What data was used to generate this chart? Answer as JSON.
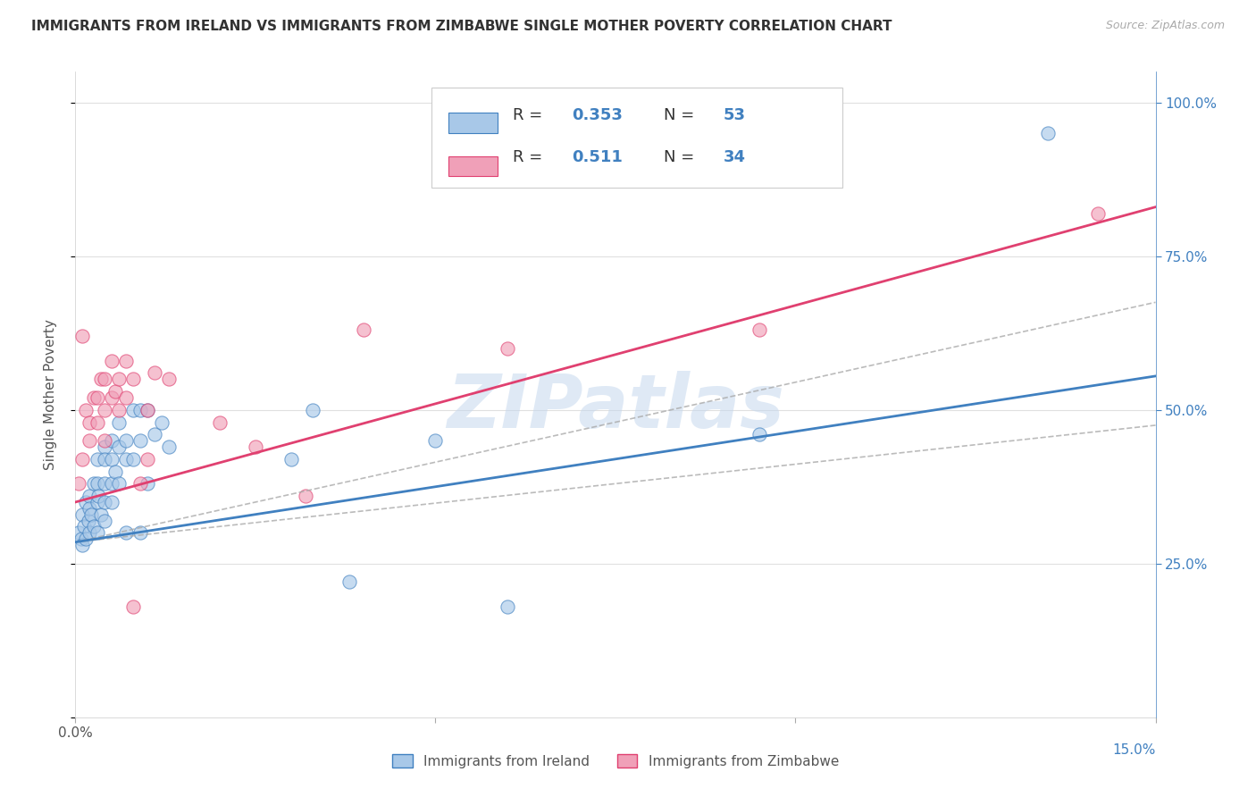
{
  "title": "IMMIGRANTS FROM IRELAND VS IMMIGRANTS FROM ZIMBABWE SINGLE MOTHER POVERTY CORRELATION CHART",
  "source": "Source: ZipAtlas.com",
  "ylabel": "Single Mother Poverty",
  "ylabel_right_ticks": [
    "100.0%",
    "75.0%",
    "50.0%",
    "25.0%"
  ],
  "ylabel_right_vals": [
    1.0,
    0.75,
    0.5,
    0.25
  ],
  "xlim": [
    0.0,
    0.15
  ],
  "ylim": [
    0.0,
    1.05
  ],
  "legend_ireland_R": "0.353",
  "legend_ireland_N": "53",
  "legend_zimbabwe_R": "0.511",
  "legend_zimbabwe_N": "34",
  "legend_label_ireland": "Immigrants from Ireland",
  "legend_label_zimbabwe": "Immigrants from Zimbabwe",
  "color_ireland": "#a8c8e8",
  "color_zimbabwe": "#f0a0b8",
  "color_line_ireland": "#4080c0",
  "color_line_zimbabwe": "#e04070",
  "color_axis_blue": "#4080c0",
  "watermark": "ZIPatlas",
  "ireland_x": [
    0.0005,
    0.0008,
    0.001,
    0.001,
    0.0012,
    0.0015,
    0.0015,
    0.0018,
    0.002,
    0.002,
    0.002,
    0.0022,
    0.0025,
    0.0025,
    0.003,
    0.003,
    0.003,
    0.003,
    0.0032,
    0.0035,
    0.004,
    0.004,
    0.004,
    0.004,
    0.004,
    0.005,
    0.005,
    0.005,
    0.005,
    0.0055,
    0.006,
    0.006,
    0.006,
    0.007,
    0.007,
    0.007,
    0.008,
    0.008,
    0.009,
    0.009,
    0.009,
    0.01,
    0.01,
    0.011,
    0.012,
    0.013,
    0.03,
    0.033,
    0.038,
    0.05,
    0.06,
    0.095,
    0.135
  ],
  "ireland_y": [
    0.3,
    0.29,
    0.33,
    0.28,
    0.31,
    0.35,
    0.29,
    0.32,
    0.36,
    0.34,
    0.3,
    0.33,
    0.38,
    0.31,
    0.42,
    0.38,
    0.35,
    0.3,
    0.36,
    0.33,
    0.44,
    0.42,
    0.38,
    0.35,
    0.32,
    0.45,
    0.42,
    0.38,
    0.35,
    0.4,
    0.48,
    0.44,
    0.38,
    0.45,
    0.42,
    0.3,
    0.5,
    0.42,
    0.5,
    0.45,
    0.3,
    0.5,
    0.38,
    0.46,
    0.48,
    0.44,
    0.42,
    0.5,
    0.22,
    0.45,
    0.18,
    0.46,
    0.95
  ],
  "zimbabwe_x": [
    0.0005,
    0.001,
    0.001,
    0.0015,
    0.002,
    0.002,
    0.0025,
    0.003,
    0.003,
    0.0035,
    0.004,
    0.004,
    0.004,
    0.005,
    0.005,
    0.0055,
    0.006,
    0.006,
    0.007,
    0.007,
    0.008,
    0.008,
    0.009,
    0.01,
    0.01,
    0.011,
    0.013,
    0.02,
    0.025,
    0.032,
    0.04,
    0.06,
    0.095,
    0.142
  ],
  "zimbabwe_y": [
    0.38,
    0.62,
    0.42,
    0.5,
    0.48,
    0.45,
    0.52,
    0.52,
    0.48,
    0.55,
    0.55,
    0.5,
    0.45,
    0.58,
    0.52,
    0.53,
    0.55,
    0.5,
    0.58,
    0.52,
    0.55,
    0.18,
    0.38,
    0.5,
    0.42,
    0.56,
    0.55,
    0.48,
    0.44,
    0.36,
    0.63,
    0.6,
    0.63,
    0.82
  ],
  "grid_color": "#e0e0e0",
  "bg_color": "#ffffff",
  "ireland_line_intercept": 0.285,
  "ireland_line_slope": 1.8,
  "zimbabwe_line_intercept": 0.35,
  "zimbabwe_line_slope": 3.2
}
